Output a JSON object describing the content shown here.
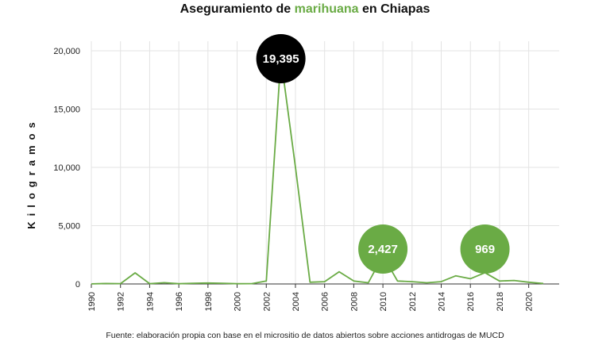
{
  "chart_data": {
    "type": "line",
    "title_parts": [
      "Aseguramiento de ",
      "marihuana",
      " en Chiapas"
    ],
    "ylabel": "Kilogramos",
    "source": "Fuente: elaboración propia con base en el micrositio de datos abiertos sobre acciones antidrogas de MUCD",
    "x": [
      1990,
      1991,
      1992,
      1993,
      1994,
      1995,
      1996,
      1997,
      1998,
      1999,
      2000,
      2001,
      2002,
      2003,
      2004,
      2005,
      2006,
      2007,
      2008,
      2009,
      2010,
      2011,
      2012,
      2013,
      2014,
      2015,
      2016,
      2017,
      2018,
      2019,
      2020,
      2021
    ],
    "values": [
      10,
      40,
      30,
      950,
      30,
      110,
      20,
      60,
      80,
      60,
      20,
      30,
      250,
      19395,
      10000,
      150,
      200,
      1050,
      250,
      100,
      2427,
      250,
      200,
      100,
      200,
      700,
      450,
      969,
      250,
      300,
      150,
      40
    ],
    "xlim": [
      1990,
      2021
    ],
    "ylim": [
      0,
      20000
    ],
    "x_ticks": [
      "1990",
      "1992",
      "1994",
      "1996",
      "1998",
      "2000",
      "2002",
      "2004",
      "2006",
      "2008",
      "2010",
      "2012",
      "2014",
      "2016",
      "2018",
      "2020"
    ],
    "y_ticks": [
      "0",
      "5,000",
      "10,000",
      "15,000",
      "20,000"
    ],
    "grid": true,
    "annotations": [
      {
        "x": 2003,
        "value": 19395,
        "label": "19,395",
        "color": "#000000"
      },
      {
        "x": 2010,
        "value": 2427,
        "label": "2,427",
        "color": "#6aab45"
      },
      {
        "x": 2017,
        "value": 969,
        "label": "969",
        "color": "#6aab45"
      }
    ],
    "colors": {
      "line": "#6aab45",
      "highlight": "#6aab45",
      "grid": "#e3e3e3",
      "axis": "#333333"
    }
  }
}
